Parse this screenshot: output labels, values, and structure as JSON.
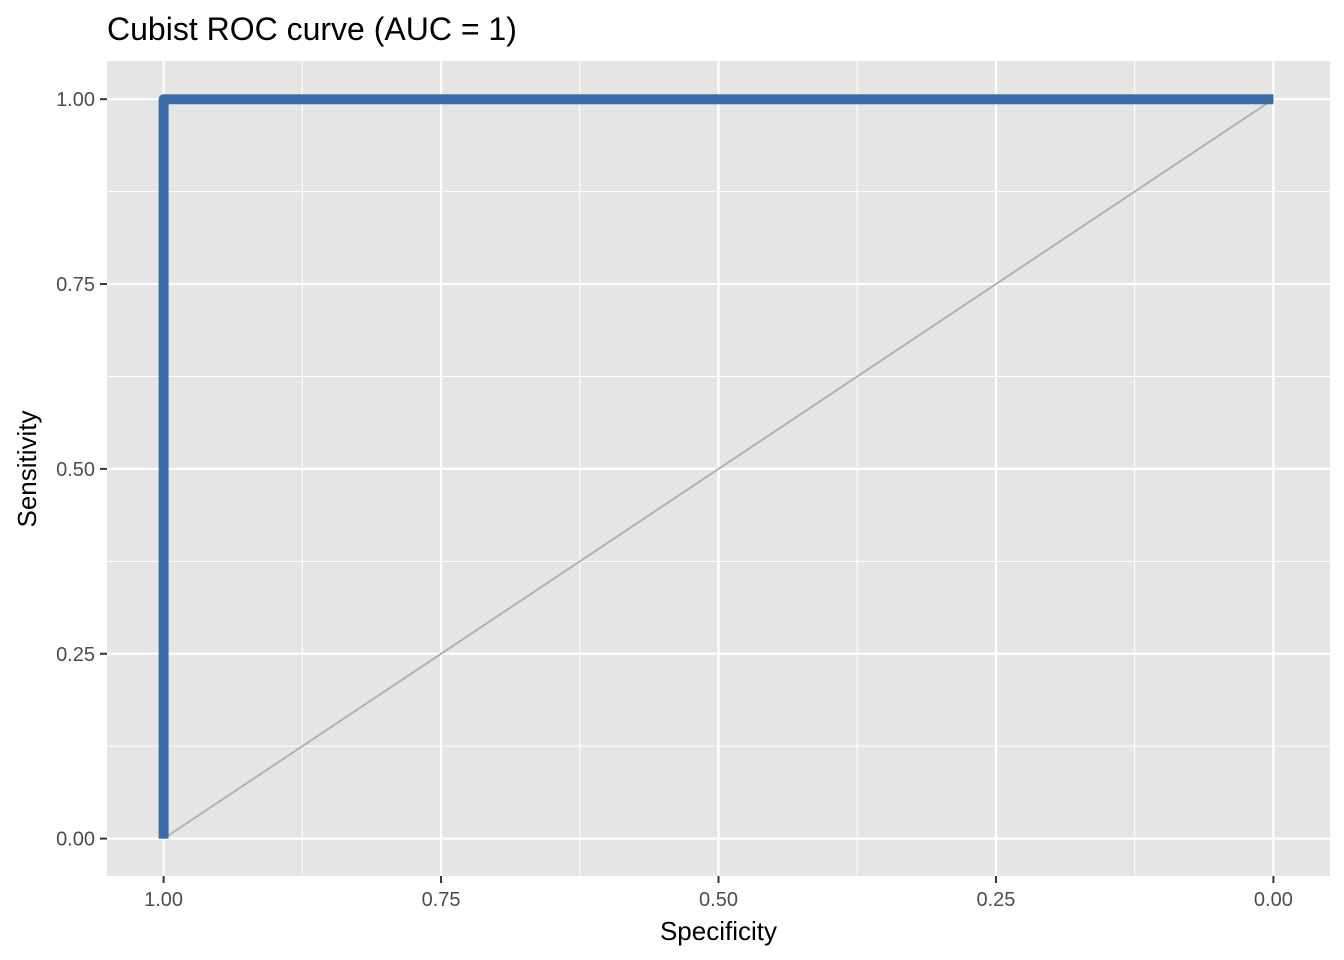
{
  "chart_data": {
    "type": "line",
    "title": "Cubist ROC curve (AUC = 1)",
    "xlabel": "Specificity",
    "ylabel": "Sensitivity",
    "x_reversed": true,
    "xlim": [
      1.0,
      0.0
    ],
    "ylim": [
      0.0,
      1.0
    ],
    "xticks": [
      1.0,
      0.75,
      0.5,
      0.25,
      0.0
    ],
    "yticks": [
      0.0,
      0.25,
      0.5,
      0.75,
      1.0
    ],
    "xtick_labels": [
      "1.00",
      "0.75",
      "0.50",
      "0.25",
      "0.00"
    ],
    "ytick_labels": [
      "0.00",
      "0.25",
      "0.50",
      "0.75",
      "1.00"
    ],
    "grid": true,
    "series": [
      {
        "x": [
          1.0,
          1.0,
          0.0
        ],
        "y": [
          0.0,
          1.0,
          1.0
        ],
        "color": "#3b6ea8"
      },
      {
        "x": [
          1.0,
          0.0
        ],
        "y": [
          0.0,
          1.0
        ],
        "color": "#b3b3b3"
      }
    ],
    "colors": {
      "panel_background": "#e5e5e5",
      "grid": "#ffffff",
      "tick_text": "#4d4d4d",
      "tick_mark": "#333333"
    }
  }
}
